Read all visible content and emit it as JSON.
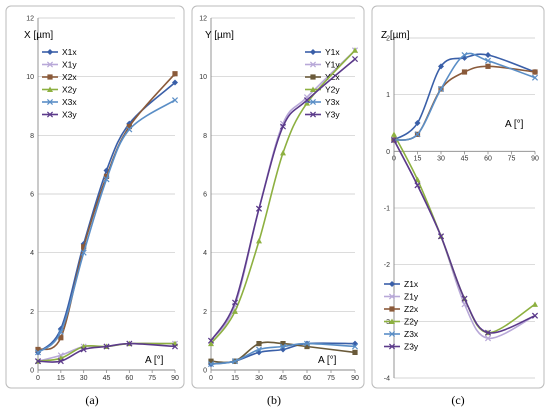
{
  "colors": {
    "X1x": "#3A5FA8",
    "X1y": "#B8A8D8",
    "X2x": "#8A5A3A",
    "X2y": "#8DB040",
    "X3x": "#5A8EC6",
    "X3y": "#5B3A8A",
    "Y1x": "#3A5FA8",
    "Y1y": "#B8A8D8",
    "Y2x": "#6A5A3A",
    "Y2y": "#8DB040",
    "Y3x": "#5A8EC6",
    "Y3y": "#5B3A8A",
    "Z1x": "#3A5FA8",
    "Z1y": "#B8A8D8",
    "Z2x": "#8A5A3A",
    "Z2y": "#8DB040",
    "Z3x": "#5A8EC6",
    "Z3y": "#5B3A8A"
  },
  "subfigure_labels": [
    "(a)",
    "(b)",
    "(c)"
  ],
  "chart_data": [
    {
      "type": "line",
      "ylabel": "X [µm]",
      "xlabel": "A [°]",
      "x": [
        0,
        15,
        30,
        45,
        60,
        90
      ],
      "xticks": [
        "0",
        "15",
        "30",
        "45",
        "60",
        "75",
        "90"
      ],
      "ylim": [
        0,
        12
      ],
      "yticks": [
        "0",
        "2",
        "4",
        "6",
        "8",
        "10",
        "12"
      ],
      "grid": true,
      "legend": "top-left",
      "series": [
        {
          "name": "X1x",
          "values": [
            0.6,
            1.4,
            4.3,
            6.8,
            8.4,
            9.8
          ],
          "marker": "diamond"
        },
        {
          "name": "X1y",
          "values": [
            0.3,
            0.5,
            0.8,
            0.8,
            0.9,
            0.9
          ],
          "marker": "x"
        },
        {
          "name": "X2x",
          "values": [
            0.7,
            1.1,
            4.2,
            6.6,
            8.3,
            10.1
          ],
          "marker": "square"
        },
        {
          "name": "X2y",
          "values": [
            0.3,
            0.4,
            0.8,
            0.8,
            0.9,
            0.9
          ],
          "marker": "triangle"
        },
        {
          "name": "X3x",
          "values": [
            0.6,
            1.3,
            4.0,
            6.5,
            8.2,
            9.2
          ],
          "marker": "x"
        },
        {
          "name": "X3y",
          "values": [
            0.3,
            0.3,
            0.7,
            0.8,
            0.9,
            0.8
          ],
          "marker": "x"
        }
      ]
    },
    {
      "type": "line",
      "ylabel": "Y [µm]",
      "xlabel": "A [°]",
      "x": [
        0,
        15,
        30,
        45,
        60,
        90
      ],
      "xticks": [
        "0",
        "15",
        "30",
        "45",
        "60",
        "75",
        "90"
      ],
      "ylim": [
        0,
        12
      ],
      "yticks": [
        "0",
        "2",
        "4",
        "6",
        "8",
        "10",
        "12"
      ],
      "grid": true,
      "legend": "top-right",
      "series": [
        {
          "name": "Y1x",
          "values": [
            0.2,
            0.3,
            0.6,
            0.7,
            0.9,
            0.9
          ],
          "marker": "diamond"
        },
        {
          "name": "Y1y",
          "values": [
            1.0,
            2.2,
            5.5,
            8.4,
            9.3,
            10.9
          ],
          "marker": "x"
        },
        {
          "name": "Y2x",
          "values": [
            0.3,
            0.3,
            0.9,
            0.9,
            0.8,
            0.6
          ],
          "marker": "square"
        },
        {
          "name": "Y2y",
          "values": [
            0.9,
            2.0,
            4.4,
            7.4,
            9.1,
            10.9
          ],
          "marker": "triangle"
        },
        {
          "name": "Y3x",
          "values": [
            0.2,
            0.3,
            0.7,
            0.8,
            0.9,
            0.8
          ],
          "marker": "x"
        },
        {
          "name": "Y3y",
          "values": [
            1.0,
            2.3,
            5.5,
            8.3,
            9.2,
            10.6
          ],
          "marker": "x"
        }
      ]
    },
    {
      "type": "line",
      "ylabel": "Z [µm]",
      "xlabel": "A [°]",
      "x": [
        0,
        15,
        30,
        45,
        60,
        90
      ],
      "xticks": [
        "0",
        "15",
        "30",
        "45",
        "60",
        "75",
        "90"
      ],
      "ylim": [
        -4,
        2
      ],
      "yticks": [
        "-4",
        "-3",
        "-2",
        "-1",
        "0",
        "1",
        "2"
      ],
      "grid": true,
      "legend": "bottom-left",
      "series": [
        {
          "name": "Z1x",
          "values": [
            0.2,
            0.5,
            1.5,
            1.65,
            1.7,
            1.4
          ],
          "marker": "diamond"
        },
        {
          "name": "Z1y",
          "values": [
            0.2,
            -0.6,
            -1.5,
            -2.7,
            -3.3,
            -2.9
          ],
          "marker": "x"
        },
        {
          "name": "Z2x",
          "values": [
            0.2,
            0.3,
            1.1,
            1.4,
            1.5,
            1.4
          ],
          "marker": "square"
        },
        {
          "name": "Z2y",
          "values": [
            0.3,
            -0.5,
            -1.5,
            -2.6,
            -3.2,
            -2.7
          ],
          "marker": "triangle"
        },
        {
          "name": "Z3x",
          "values": [
            0.2,
            0.3,
            1.1,
            1.7,
            1.6,
            1.3
          ],
          "marker": "x"
        },
        {
          "name": "Z3y",
          "values": [
            0.2,
            -0.6,
            -1.5,
            -2.6,
            -3.2,
            -2.9
          ],
          "marker": "x"
        }
      ]
    }
  ]
}
